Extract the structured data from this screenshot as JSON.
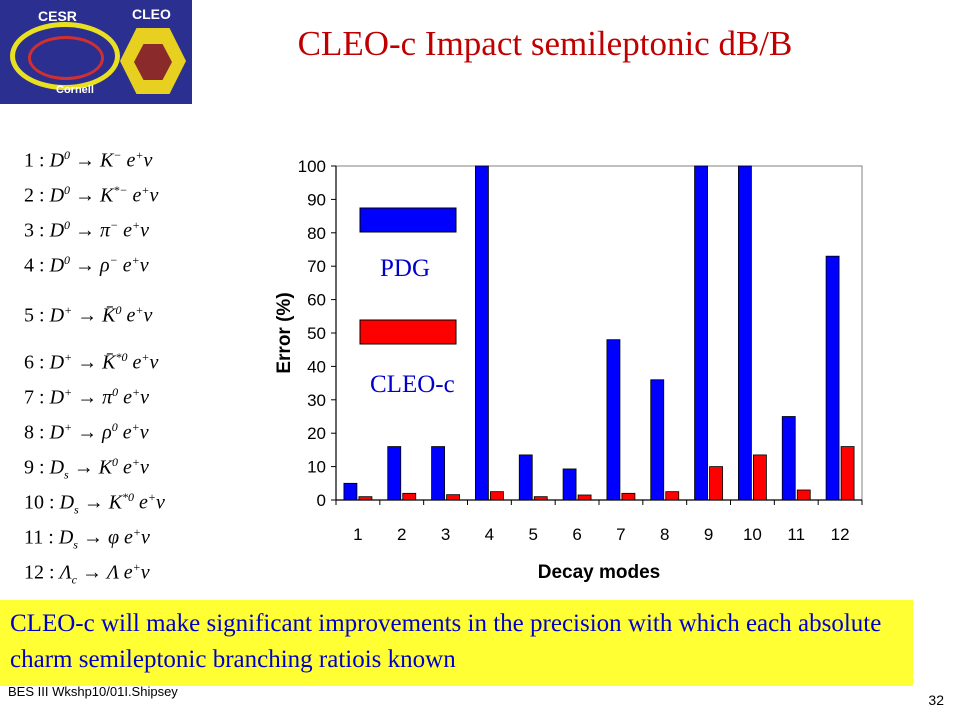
{
  "logo": {
    "left_text": "CESR",
    "right_text": "CLEO",
    "sub_text": "Cornell"
  },
  "title": "CLEO-c Impact semileptonic dB/B",
  "modes": [
    {
      "n": "1",
      "parent": "D",
      "psup": "0",
      "k": "K",
      "ksup": "−",
      "tail": "e",
      "tsup": "+",
      "nu": "ν"
    },
    {
      "n": "2",
      "parent": "D",
      "psup": "0",
      "k": "K",
      "ksup": "*−",
      "tail": "e",
      "tsup": "+",
      "nu": "ν"
    },
    {
      "n": "3",
      "parent": "D",
      "psup": "0",
      "k": "π",
      "ksup": "−",
      "tail": "e",
      "tsup": "+",
      "nu": "ν"
    },
    {
      "n": "4",
      "parent": "D",
      "psup": "0",
      "k": "ρ",
      "ksup": "−",
      "tail": "e",
      "tsup": "+",
      "nu": "ν"
    },
    {
      "n": "5",
      "parent": "D",
      "psup": "+",
      "k": "K̄",
      "ksup": "0",
      "tail": "e",
      "tsup": "+",
      "nu": "ν"
    },
    {
      "n": "6",
      "parent": "D",
      "psup": "+",
      "k": "K̄",
      "ksup": "*0",
      "tail": "e",
      "tsup": "+",
      "nu": "ν"
    },
    {
      "n": "7",
      "parent": "D",
      "psup": "+",
      "k": "π",
      "ksup": "0",
      "tail": "e",
      "tsup": "+",
      "nu": "ν"
    },
    {
      "n": "8",
      "parent": "D",
      "psup": "+",
      "k": "ρ",
      "ksup": "0",
      "tail": "e",
      "tsup": "+",
      "nu": "ν"
    },
    {
      "n": "9",
      "parent": "D",
      "psub": "s",
      "k": "K",
      "ksup": "0",
      "tail": "e",
      "tsup": "+",
      "nu": "ν"
    },
    {
      "n": "10",
      "parent": "D",
      "psub": "s",
      "k": "K",
      "ksup": "*0",
      "tail": "e",
      "tsup": "+",
      "nu": "ν"
    },
    {
      "n": "11",
      "parent": "D",
      "psub": "s",
      "k": "φ",
      "ksup": "",
      "tail": "e",
      "tsup": "+",
      "nu": "ν"
    },
    {
      "n": "12",
      "parent": "Λ",
      "psub": "c",
      "k": "Λ",
      "ksup": "",
      "tail": "e",
      "tsup": "+",
      "nu": "ν"
    }
  ],
  "chart_data": {
    "type": "bar",
    "categories": [
      "1",
      "2",
      "3",
      "4",
      "5",
      "6",
      "7",
      "8",
      "9",
      "10",
      "11",
      "12"
    ],
    "series": [
      {
        "name": "PDG",
        "color": "#0000ff",
        "values": [
          5,
          16,
          16,
          100,
          13.5,
          9.3,
          48,
          36,
          100,
          100,
          25,
          73
        ]
      },
      {
        "name": "CLEO-c",
        "color": "#ff0000",
        "values": [
          1,
          2,
          1.6,
          2.5,
          1,
          1.5,
          2,
          2.5,
          10,
          13.5,
          3,
          16
        ]
      }
    ],
    "xlabel": "Decay modes",
    "ylabel": "Error (%)",
    "ylim": [
      0,
      100
    ],
    "yticks": [
      0,
      10,
      20,
      30,
      40,
      50,
      60,
      70,
      80,
      90,
      100
    ],
    "grid": false,
    "legend": "left-inside"
  },
  "banner": "CLEO-c will make significant improvements in the precision with which each absolute charm semileptonic branching ratiois known",
  "footer": "BES III Wkshp10/01I.Shipsey",
  "page_number": "32"
}
